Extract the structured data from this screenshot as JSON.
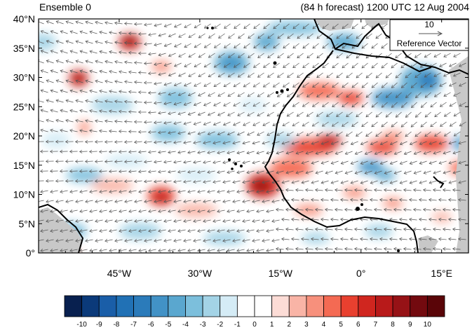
{
  "header": {
    "left_title": "Ensemble 0",
    "right_title": "(84 h forecast) 1200 UTC 12 Aug 2004"
  },
  "map": {
    "lat_labels": [
      "40°N",
      "35°N",
      "30°N",
      "25°N",
      "20°N",
      "15°N",
      "10°N",
      "5°N",
      "0°"
    ],
    "lon_labels": [
      "45°W",
      "30°W",
      "15°W",
      "0°",
      "15°E"
    ],
    "region": {
      "lon_min": -60,
      "lon_max": 20,
      "lat_min": 0,
      "lat_max": 40
    },
    "missing_color": "#c8c8c8",
    "coast_color": "#000000",
    "vector_color": "#555555"
  },
  "reference_vector": {
    "magnitude": "10",
    "label": "Reference Vector"
  },
  "colorbar": {
    "labels": [
      "-10",
      "-9",
      "-8",
      "-7",
      "-6",
      "-5",
      "-4",
      "-3",
      "-2",
      "-1",
      "0",
      "1",
      "2",
      "3",
      "4",
      "5",
      "6",
      "7",
      "8",
      "9",
      "10"
    ],
    "colors": [
      "#08204f",
      "#0b3a7a",
      "#1a5ea8",
      "#2171b5",
      "#2b7bba",
      "#4292c6",
      "#5aa7cf",
      "#7cbfdc",
      "#a3d3e6",
      "#d5ecf6",
      "#ffffff",
      "#ffffff",
      "#fcdcd6",
      "#f9b4a6",
      "#f7907c",
      "#f46a53",
      "#e8402f",
      "#d0261f",
      "#b81a1a",
      "#961216",
      "#730a0f",
      "#5a0508"
    ]
  }
}
